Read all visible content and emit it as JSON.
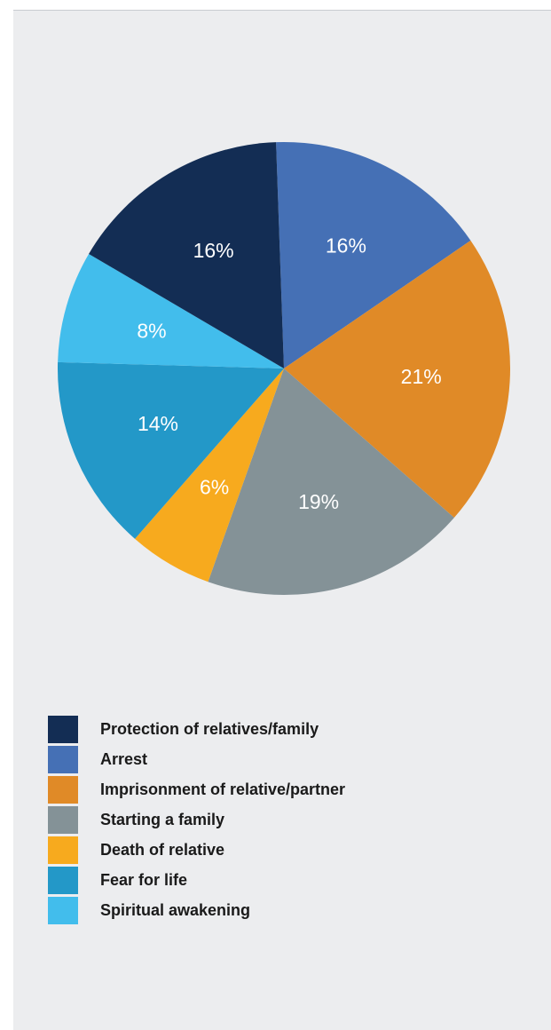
{
  "chart_data": {
    "type": "pie",
    "title": "",
    "legend_position": "bottom",
    "slices": [
      {
        "label": "Arrest",
        "value": 16,
        "display": "16%",
        "color": "#4570b5"
      },
      {
        "label": "Imprisonment of relative/partner",
        "value": 21,
        "display": "21%",
        "color": "#e08a27"
      },
      {
        "label": "Starting a family",
        "value": 19,
        "display": "19%",
        "color": "#849297"
      },
      {
        "label": "Death of relative",
        "value": 6,
        "display": "6%",
        "color": "#f7aa1e"
      },
      {
        "label": "Fear for life",
        "value": 14,
        "display": "14%",
        "color": "#2398c8"
      },
      {
        "label": "Spiritual awakening",
        "value": 8,
        "display": "8%",
        "color": "#42bdec"
      },
      {
        "label": "Protection of relatives/family",
        "value": 16,
        "display": "16%",
        "color": "#132d54"
      }
    ]
  },
  "legend": {
    "items": [
      {
        "label": "Protection of relatives/family",
        "color": "#132d54"
      },
      {
        "label": "Arrest",
        "color": "#4570b5"
      },
      {
        "label": "Imprisonment of relative/partner",
        "color": "#e08a27"
      },
      {
        "label": "Starting a family",
        "color": "#849297"
      },
      {
        "label": "Death of relative",
        "color": "#f7aa1e"
      },
      {
        "label": "Fear for life",
        "color": "#2398c8"
      },
      {
        "label": "Spiritual awakening",
        "color": "#42bdec"
      }
    ]
  }
}
